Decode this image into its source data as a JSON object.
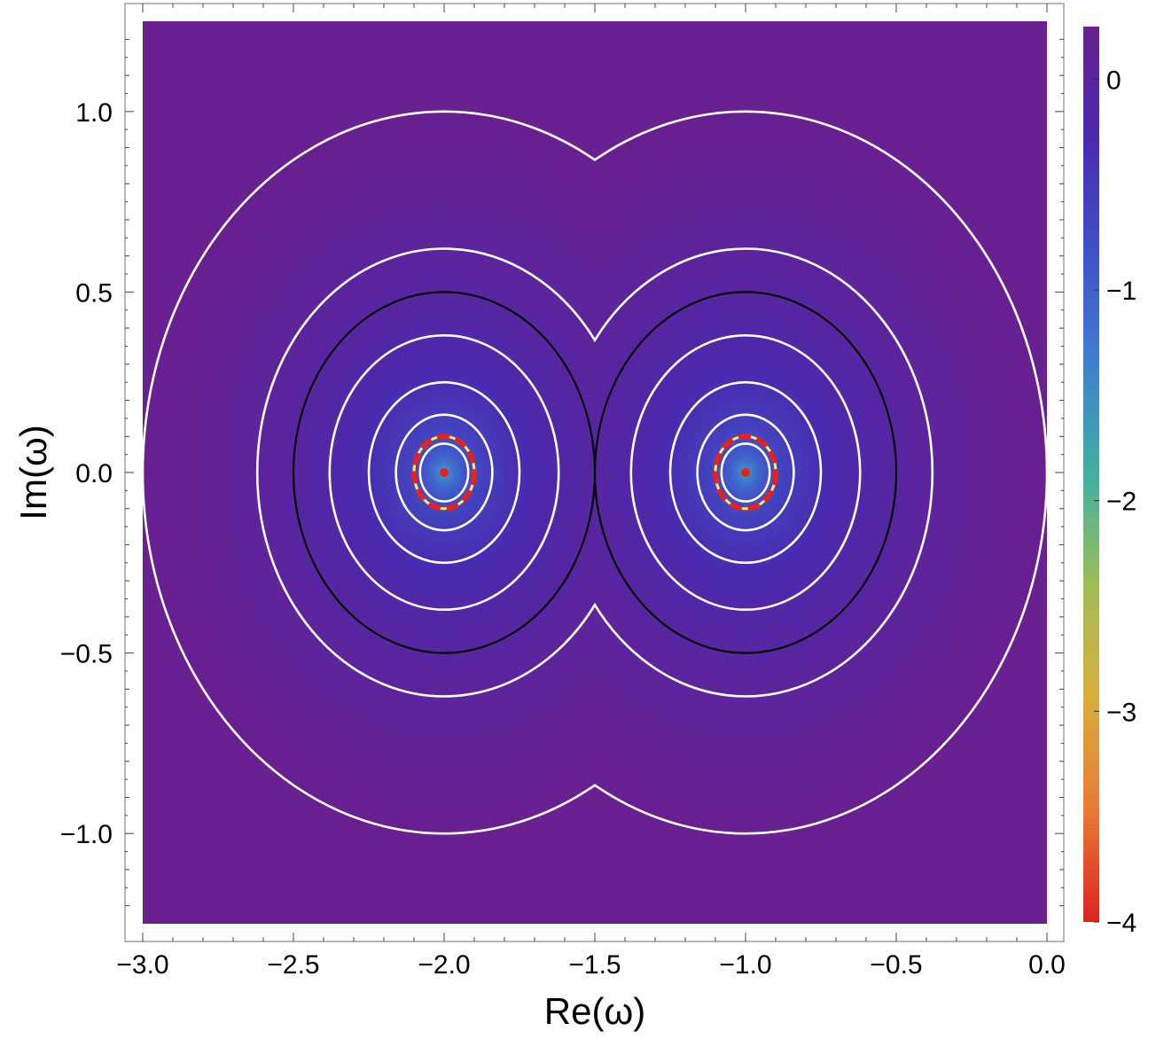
{
  "chart_data": {
    "type": "heatmap",
    "xlabel": "Re(ω)",
    "ylabel": "Im(ω)",
    "xlim": [
      -3.0,
      0.0
    ],
    "ylim": [
      -1.25,
      1.25
    ],
    "x_ticks": [
      -3.0,
      -2.5,
      -2.0,
      -1.5,
      -1.0,
      -0.5,
      0.0
    ],
    "x_tick_labels": [
      "−3.0",
      "−2.5",
      "−2.0",
      "−1.5",
      "−1.0",
      "−0.5",
      "0.0"
    ],
    "y_ticks": [
      1.0,
      0.5,
      0.0,
      -0.5,
      -1.0
    ],
    "y_tick_labels": [
      "1.0",
      "0.5",
      "0.0",
      "−0.5",
      "−1.0"
    ],
    "colorbar": {
      "range": [
        -4,
        0.25
      ],
      "ticks": [
        0,
        -1,
        -2,
        -3,
        -4
      ],
      "tick_labels": [
        "0",
        "−1",
        "−2",
        "−3",
        "−4"
      ],
      "colors": [
        "#e0221f",
        "#e87a35",
        "#d9ad3c",
        "#9fbe55",
        "#3fb0a0",
        "#3f7fcf",
        "#4050c8",
        "#4a2aae",
        "#6a2090"
      ]
    },
    "poles": [
      {
        "re": -2.0,
        "im": 0.0
      },
      {
        "re": -1.0,
        "im": 0.0
      }
    ],
    "white_contour_levels": [
      0.0,
      0.6,
      0.95,
      1.25,
      1.45
    ],
    "white_contour_note_values_are_log_distance_offsets": true,
    "black_contour_radius": 0.5,
    "dashed_circle_radius": 0.1,
    "colors": {
      "white_contour": "#ffffff",
      "black_contour": "#000000",
      "dashed_red": "#e4221f",
      "dashed_yellow": "#f4f06a",
      "pole_dot": "#e4221f",
      "frame": "#888888"
    }
  }
}
